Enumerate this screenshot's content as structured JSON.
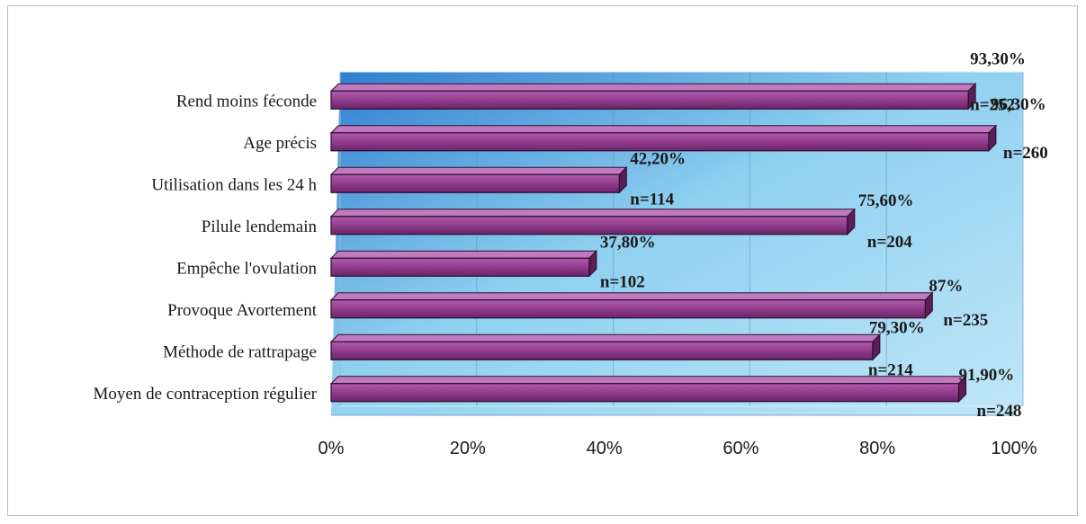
{
  "chart_data": {
    "type": "bar",
    "orientation": "horizontal",
    "categories": [
      "Rend moins féconde",
      "Age précis",
      "Utilisation dans les 24 h",
      "Pilule lendemain",
      "Empêche l'ovulation",
      "Provoque Avortement",
      "Méthode de rattrapage",
      "Moyen de contraception régulier"
    ],
    "values": [
      93.3,
      96.3,
      42.2,
      75.6,
      37.8,
      87,
      79.3,
      91.9
    ],
    "value_labels": [
      "93,30%",
      "96,30%",
      "42,20%",
      "75,60%",
      "37,80%",
      "87%",
      "79,30%",
      "91,90%"
    ],
    "count_labels": [
      "n=252",
      "n=260",
      "n=114",
      "n=204",
      "n=102",
      "n=235",
      "n=214",
      "n=248"
    ],
    "xlim": [
      0,
      100
    ],
    "x_ticks": [
      0,
      20,
      40,
      60,
      80,
      100
    ],
    "x_tick_labels": [
      "0%",
      "20%",
      "40%",
      "60%",
      "80%",
      "100%"
    ],
    "grid": true,
    "legend": "none",
    "bar_color": "#8e3a8a",
    "plot_background": [
      "#2f7fd0",
      "#bfe6f7"
    ]
  }
}
